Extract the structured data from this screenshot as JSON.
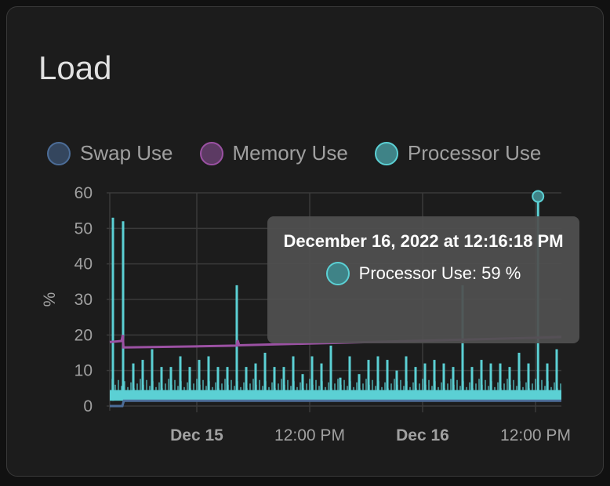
{
  "card": {
    "title": "Load"
  },
  "tooltip": {
    "title": "December 16, 2022 at 12:16:18 PM",
    "series": "Processor Use",
    "value_text": "Processor Use: 59 %"
  },
  "chart_data": {
    "type": "line",
    "title": "",
    "ylabel": "%",
    "xlabel": "",
    "ylim": [
      0,
      60
    ],
    "xlim": [
      "2022-12-14 14:45",
      "2022-12-16 14:45"
    ],
    "yticks": [
      "0",
      "10",
      "20",
      "30",
      "40",
      "50",
      "60"
    ],
    "xticks": [
      {
        "t": "2022-12-15 00:00",
        "label": "Dec 15",
        "bold": true
      },
      {
        "t": "2022-12-15 12:00",
        "label": "12:00 PM",
        "bold": false
      },
      {
        "t": "2022-12-16 00:00",
        "label": "Dec 16",
        "bold": true
      },
      {
        "t": "2022-12-16 12:00",
        "label": "12:00 PM",
        "bold": false
      }
    ],
    "grid": true,
    "legend_position": "top",
    "series": [
      {
        "name": "Swap Use",
        "color": "#4c6d98",
        "points": [
          [
            "2022-12-14 14:45",
            0
          ],
          [
            "2022-12-14 16:05",
            0
          ],
          [
            "2022-12-14 16:15",
            1.5
          ],
          [
            "2022-12-16 14:45",
            1.5
          ]
        ]
      },
      {
        "name": "Memory Use",
        "color": "#9b51a3",
        "points": [
          [
            "2022-12-14 14:45",
            18
          ],
          [
            "2022-12-14 16:00",
            18.3
          ],
          [
            "2022-12-14 16:08",
            20
          ],
          [
            "2022-12-14 16:12",
            16.5
          ],
          [
            "2022-12-15 00:00",
            16.8
          ],
          [
            "2022-12-15 04:15",
            17
          ],
          [
            "2022-12-15 04:20",
            18.5
          ],
          [
            "2022-12-15 04:30",
            17.1
          ],
          [
            "2022-12-15 12:00",
            17.6
          ],
          [
            "2022-12-16 00:00",
            18.4
          ],
          [
            "2022-12-16 14:45",
            19.4
          ]
        ]
      },
      {
        "name": "Processor Use",
        "color": "#5bd0d4",
        "baseline": [
          1.5,
          4.5
        ],
        "spikes": [
          [
            "2022-12-14 15:05",
            53
          ],
          [
            "2022-12-14 16:10",
            52
          ],
          [
            "2022-12-14 17:15",
            12
          ],
          [
            "2022-12-14 18:15",
            13
          ],
          [
            "2022-12-14 19:15",
            16
          ],
          [
            "2022-12-14 20:15",
            11
          ],
          [
            "2022-12-14 21:15",
            11
          ],
          [
            "2022-12-14 22:15",
            14
          ],
          [
            "2022-12-14 23:15",
            11
          ],
          [
            "2022-12-15 00:15",
            13
          ],
          [
            "2022-12-15 01:15",
            14
          ],
          [
            "2022-12-15 02:15",
            11
          ],
          [
            "2022-12-15 03:15",
            11
          ],
          [
            "2022-12-15 04:15",
            34
          ],
          [
            "2022-12-15 05:15",
            11
          ],
          [
            "2022-12-15 06:15",
            12
          ],
          [
            "2022-12-15 07:15",
            15
          ],
          [
            "2022-12-15 08:15",
            11
          ],
          [
            "2022-12-15 09:15",
            11
          ],
          [
            "2022-12-15 10:15",
            14
          ],
          [
            "2022-12-15 11:15",
            9
          ],
          [
            "2022-12-15 12:15",
            14
          ],
          [
            "2022-12-15 13:15",
            12
          ],
          [
            "2022-12-15 14:15",
            17
          ],
          [
            "2022-12-15 15:15",
            8
          ],
          [
            "2022-12-15 16:15",
            14
          ],
          [
            "2022-12-15 17:15",
            9
          ],
          [
            "2022-12-15 18:15",
            13
          ],
          [
            "2022-12-15 19:15",
            14
          ],
          [
            "2022-12-15 20:15",
            13
          ],
          [
            "2022-12-15 21:15",
            10
          ],
          [
            "2022-12-15 22:15",
            14
          ],
          [
            "2022-12-15 23:15",
            11
          ],
          [
            "2022-12-16 00:15",
            12
          ],
          [
            "2022-12-16 01:15",
            13
          ],
          [
            "2022-12-16 02:15",
            12
          ],
          [
            "2022-12-16 03:15",
            11
          ],
          [
            "2022-12-16 04:15",
            34
          ],
          [
            "2022-12-16 05:15",
            11
          ],
          [
            "2022-12-16 06:15",
            13
          ],
          [
            "2022-12-16 07:15",
            12
          ],
          [
            "2022-12-16 08:15",
            12
          ],
          [
            "2022-12-16 09:15",
            11
          ],
          [
            "2022-12-16 10:15",
            15
          ],
          [
            "2022-12-16 11:15",
            12
          ],
          [
            "2022-12-16 12:16",
            59
          ],
          [
            "2022-12-16 13:15",
            12
          ],
          [
            "2022-12-16 14:15",
            16
          ]
        ]
      }
    ]
  },
  "legend": [
    {
      "label": "Swap Use",
      "color": "#4c6d98",
      "fill": "#34465e"
    },
    {
      "label": "Memory Use",
      "color": "#9b51a3",
      "fill": "#5c3a63"
    },
    {
      "label": "Processor Use",
      "color": "#5bd0d4",
      "fill": "#3f8387"
    }
  ]
}
